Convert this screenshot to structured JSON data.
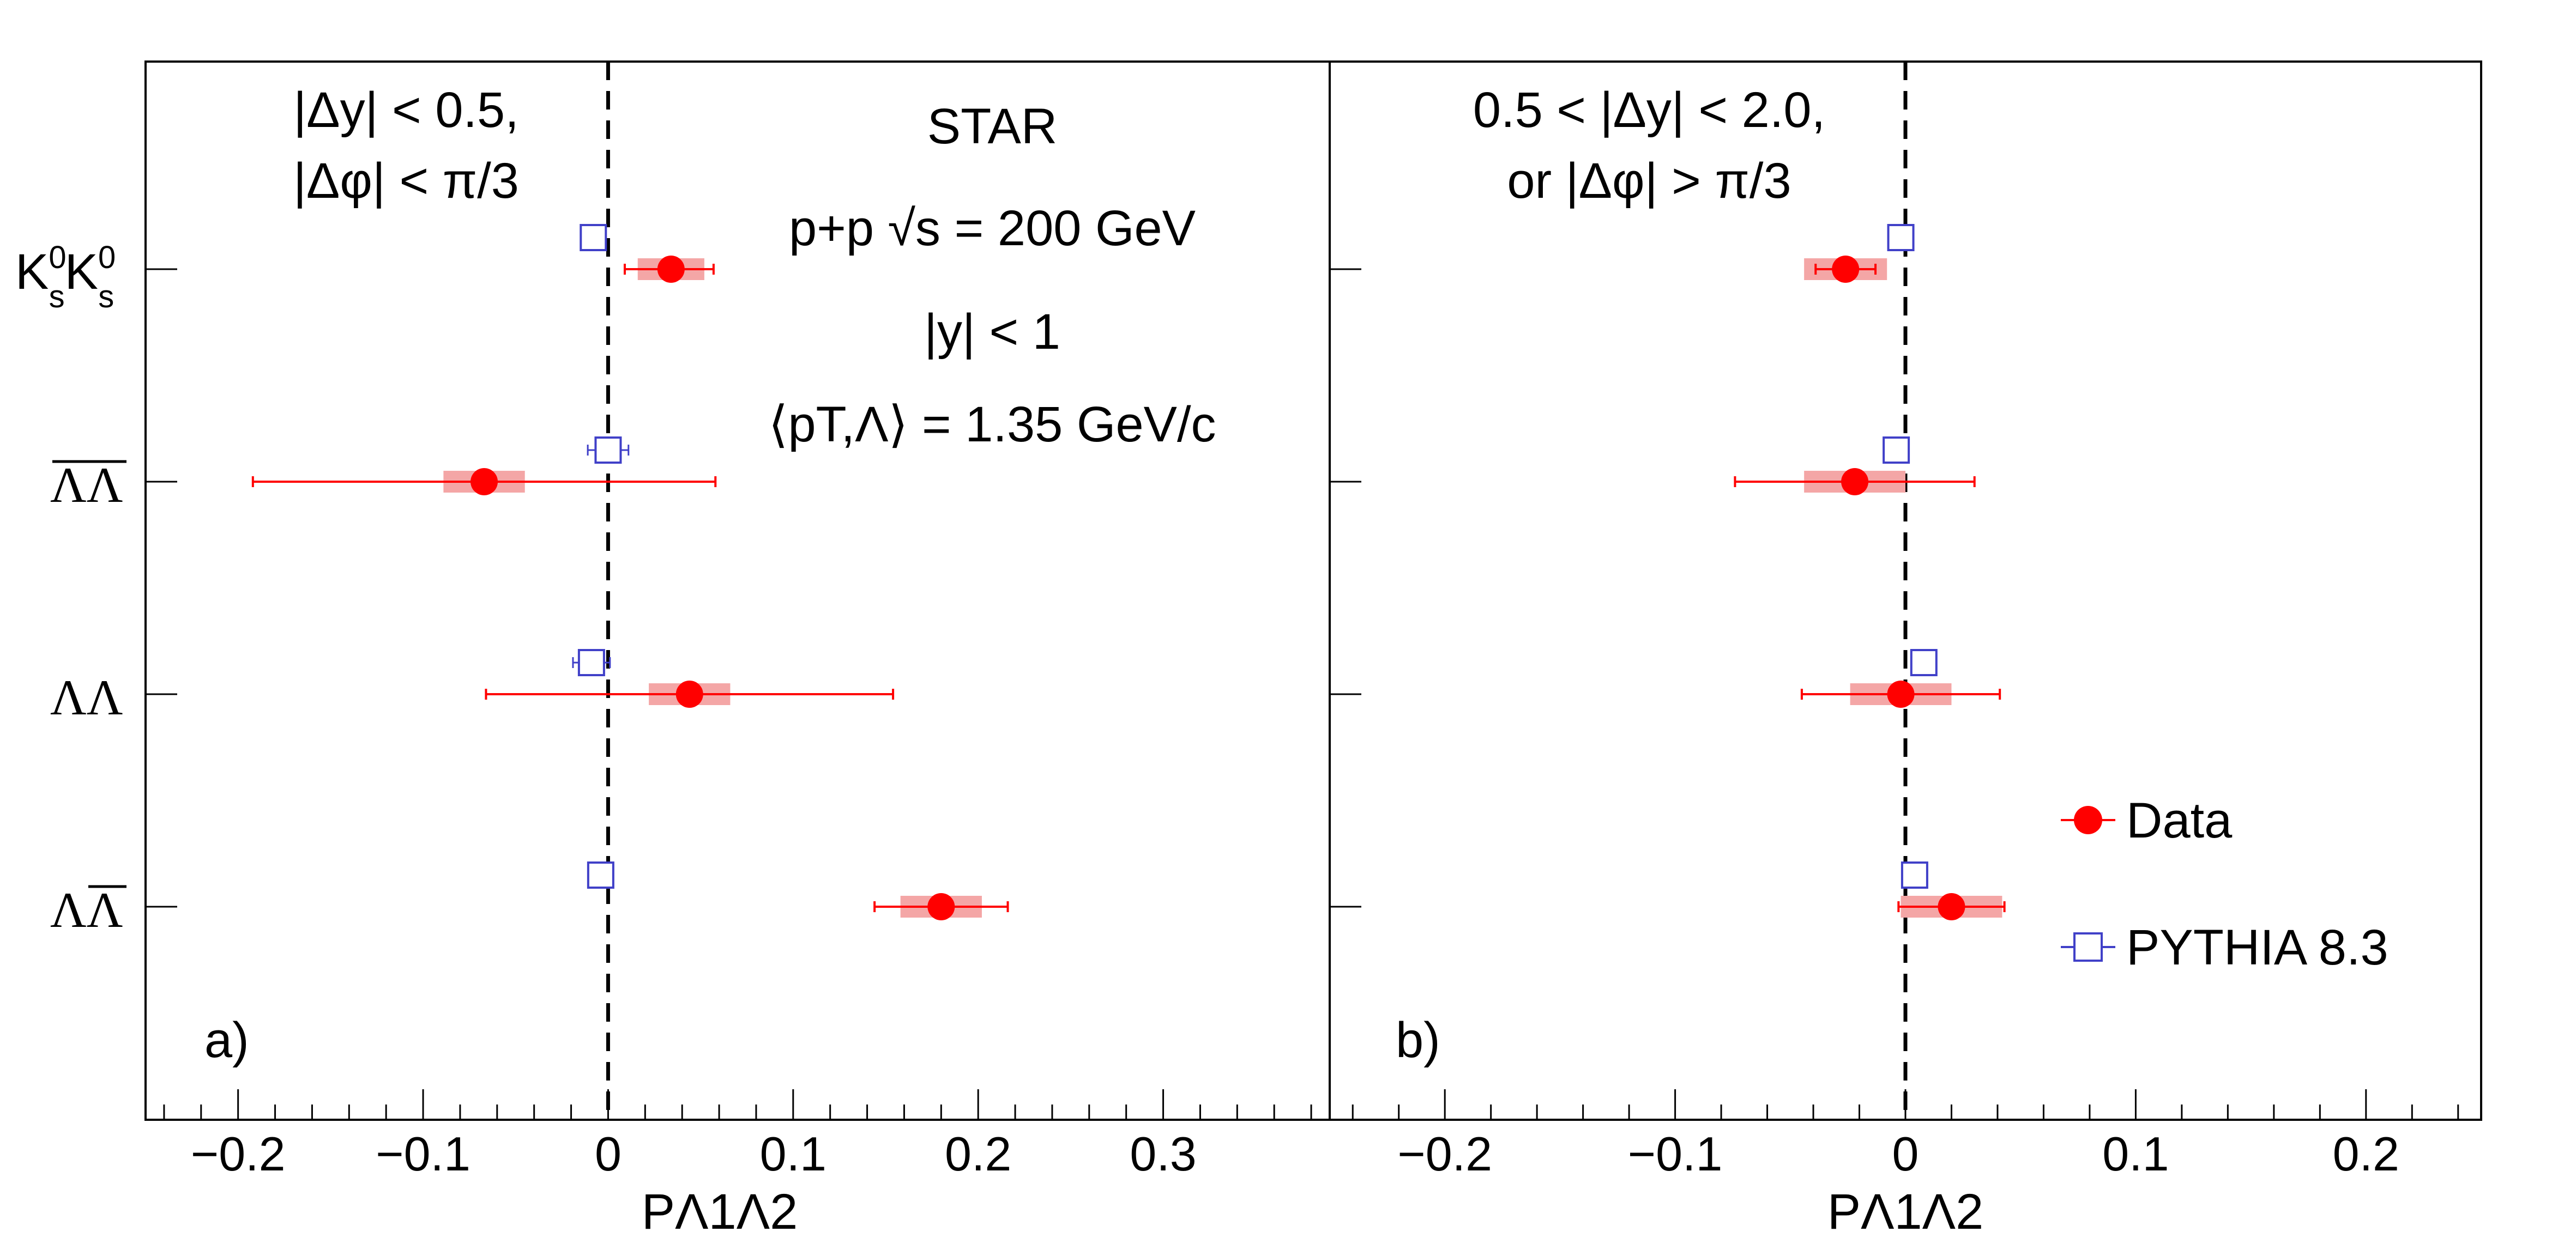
{
  "chart_data": [
    {
      "type": "scatter",
      "panel_label": "a)",
      "cuts": [
        "|Δy| < 0.5,",
        "|Δφ| < π/3"
      ],
      "info": {
        "experiment": "STAR",
        "system": "p+p  √s = 200 GeV",
        "rapidity": "|y| < 1",
        "mean_pt": "⟨pT,Λ⟩ = 1.35 GeV/c"
      },
      "xlabel": "PΛ1Λ2",
      "xlim": [
        -0.25,
        0.39
      ],
      "x_ticks": [
        "−0.2",
        "−0.1",
        "0",
        "0.1",
        "0.2",
        "0.3"
      ],
      "categories": [
        "KsKs",
        "ΛbarΛbar",
        "ΛΛ",
        "ΛΛbar"
      ],
      "series": [
        {
          "name": "Data",
          "values": [
            0.034,
            -0.067,
            0.044,
            0.18
          ],
          "stat_err_low": [
            0.025,
            0.125,
            0.11,
            0.036
          ],
          "stat_err_high": [
            0.023,
            0.125,
            0.11,
            0.036
          ],
          "sys_err": [
            0.018,
            0.022,
            0.022,
            0.022
          ]
        },
        {
          "name": "PYTHIA 8.3",
          "values": [
            -0.008,
            0.0,
            -0.009,
            -0.004
          ],
          "stat_err": [
            0.004,
            0.011,
            0.01,
            0.004
          ]
        }
      ]
    },
    {
      "type": "scatter",
      "panel_label": "b)",
      "cuts": [
        "0.5 < |Δy| < 2.0,",
        "or |Δφ| > π/3"
      ],
      "xlabel": "PΛ1Λ2",
      "xlim": [
        -0.25,
        0.25
      ],
      "x_ticks": [
        "−0.2",
        "−0.1",
        "0",
        "0.1",
        "0.2"
      ],
      "categories": [
        "KsKs",
        "ΛbarΛbar",
        "ΛΛ",
        "ΛΛbar"
      ],
      "series": [
        {
          "name": "Data",
          "values": [
            -0.026,
            -0.022,
            -0.002,
            0.02
          ],
          "stat_err_low": [
            0.013,
            0.052,
            0.043,
            0.023
          ],
          "stat_err_high": [
            0.013,
            0.052,
            0.043,
            0.023
          ],
          "sys_err": [
            0.018,
            0.022,
            0.022,
            0.022
          ]
        },
        {
          "name": "PYTHIA 8.3",
          "values": [
            -0.002,
            -0.004,
            0.008,
            0.004
          ],
          "stat_err": [
            0.002,
            0.003,
            0.003,
            0.003
          ]
        }
      ]
    }
  ],
  "legend": {
    "data_label": "Data",
    "pythia_label": "PYTHIA 8.3",
    "placement": "right"
  },
  "colors": {
    "data": "#ff0000",
    "data_band": "#f4a6a6",
    "pythia": "#4040c8",
    "axis": "#000000"
  }
}
